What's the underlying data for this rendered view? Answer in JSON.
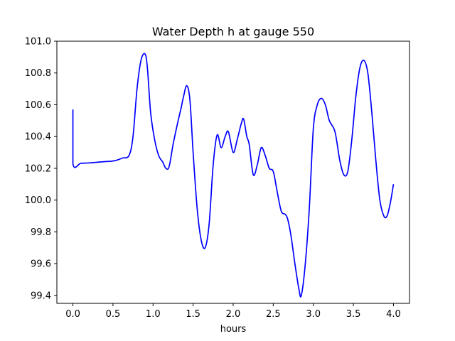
{
  "chart_data": {
    "type": "line",
    "title": "Water Depth h at gauge 550",
    "xlabel": "hours",
    "ylabel": "",
    "xlim": [
      -0.2,
      4.2
    ],
    "ylim": [
      99.35,
      101.0
    ],
    "grid": false,
    "xticks": [
      {
        "value": 0.0,
        "label": "0.0"
      },
      {
        "value": 0.5,
        "label": "0.5"
      },
      {
        "value": 1.0,
        "label": "1.0"
      },
      {
        "value": 1.5,
        "label": "1.5"
      },
      {
        "value": 2.0,
        "label": "2.0"
      },
      {
        "value": 2.5,
        "label": "2.5"
      },
      {
        "value": 3.0,
        "label": "3.0"
      },
      {
        "value": 3.5,
        "label": "3.5"
      },
      {
        "value": 4.0,
        "label": "4.0"
      }
    ],
    "yticks": [
      {
        "value": 99.4,
        "label": "99.4"
      },
      {
        "value": 99.6,
        "label": "99.6"
      },
      {
        "value": 99.8,
        "label": "99.8"
      },
      {
        "value": 100.0,
        "label": "100.0"
      },
      {
        "value": 100.2,
        "label": "100.2"
      },
      {
        "value": 100.4,
        "label": "100.4"
      },
      {
        "value": 100.6,
        "label": "100.6"
      },
      {
        "value": 100.8,
        "label": "100.8"
      },
      {
        "value": 101.0,
        "label": "101.0"
      }
    ],
    "series": [
      {
        "color": "#0000ff",
        "points": [
          [
            0.0,
            100.57
          ],
          [
            0.0,
            100.23
          ],
          [
            0.1,
            100.232
          ],
          [
            0.2,
            100.234
          ],
          [
            0.3,
            100.238
          ],
          [
            0.4,
            100.242
          ],
          [
            0.5,
            100.246
          ],
          [
            0.57,
            100.255
          ],
          [
            0.62,
            100.265
          ],
          [
            0.7,
            100.28
          ],
          [
            0.75,
            100.4
          ],
          [
            0.8,
            100.7
          ],
          [
            0.85,
            100.88
          ],
          [
            0.9,
            100.92
          ],
          [
            0.93,
            100.83
          ],
          [
            0.97,
            100.55
          ],
          [
            1.02,
            100.38
          ],
          [
            1.07,
            100.28
          ],
          [
            1.12,
            100.24
          ],
          [
            1.16,
            100.2
          ],
          [
            1.2,
            100.21
          ],
          [
            1.25,
            100.35
          ],
          [
            1.3,
            100.47
          ],
          [
            1.35,
            100.58
          ],
          [
            1.38,
            100.65
          ],
          [
            1.42,
            100.72
          ],
          [
            1.46,
            100.63
          ],
          [
            1.5,
            100.3
          ],
          [
            1.55,
            99.95
          ],
          [
            1.6,
            99.75
          ],
          [
            1.65,
            99.7
          ],
          [
            1.7,
            99.85
          ],
          [
            1.75,
            100.22
          ],
          [
            1.8,
            100.41
          ],
          [
            1.85,
            100.33
          ],
          [
            1.9,
            100.4
          ],
          [
            1.94,
            100.43
          ],
          [
            2.0,
            100.3
          ],
          [
            2.05,
            100.38
          ],
          [
            2.1,
            100.48
          ],
          [
            2.13,
            100.51
          ],
          [
            2.17,
            100.4
          ],
          [
            2.2,
            100.35
          ],
          [
            2.25,
            100.16
          ],
          [
            2.3,
            100.22
          ],
          [
            2.35,
            100.33
          ],
          [
            2.4,
            100.28
          ],
          [
            2.45,
            100.2
          ],
          [
            2.5,
            100.18
          ],
          [
            2.55,
            100.05
          ],
          [
            2.6,
            99.93
          ],
          [
            2.65,
            99.91
          ],
          [
            2.68,
            99.88
          ],
          [
            2.72,
            99.78
          ],
          [
            2.77,
            99.6
          ],
          [
            2.82,
            99.44
          ],
          [
            2.85,
            99.4
          ],
          [
            2.9,
            99.6
          ],
          [
            2.95,
            99.95
          ],
          [
            3.0,
            100.45
          ],
          [
            3.05,
            100.6
          ],
          [
            3.1,
            100.64
          ],
          [
            3.15,
            100.6
          ],
          [
            3.2,
            100.5
          ],
          [
            3.27,
            100.43
          ],
          [
            3.33,
            100.25
          ],
          [
            3.38,
            100.16
          ],
          [
            3.43,
            100.18
          ],
          [
            3.48,
            100.38
          ],
          [
            3.53,
            100.65
          ],
          [
            3.58,
            100.83
          ],
          [
            3.63,
            100.88
          ],
          [
            3.68,
            100.8
          ],
          [
            3.73,
            100.55
          ],
          [
            3.78,
            100.25
          ],
          [
            3.83,
            100.0
          ],
          [
            3.88,
            99.9
          ],
          [
            3.92,
            99.9
          ],
          [
            3.96,
            99.98
          ],
          [
            4.0,
            100.1
          ]
        ]
      }
    ]
  }
}
